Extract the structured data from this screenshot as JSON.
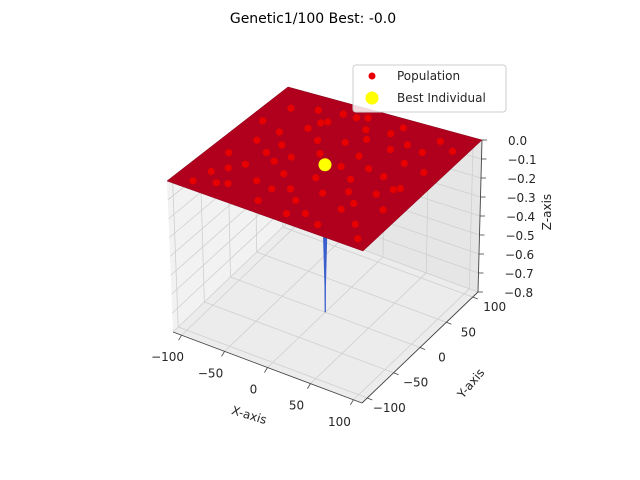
{
  "title": "Genetic1/100 Best: -0.0",
  "legend": {
    "position": "top-right",
    "items": [
      {
        "label": "Population",
        "color": "#e60000"
      },
      {
        "label": "Best Individual",
        "color": "#ffff00"
      }
    ]
  },
  "chart_data": {
    "type": "scatter",
    "projection": "3d",
    "grid": true,
    "xlabel": "X-axis",
    "ylabel": "Y-axis",
    "zlabel": "Z-axis",
    "xlim": [
      -110,
      110
    ],
    "ylim": [
      -110,
      110
    ],
    "zlim": [
      -0.8,
      0.0
    ],
    "xticks": [
      "−100",
      "−50",
      "0",
      "50",
      "100"
    ],
    "yticks": [
      "−100",
      "−50",
      "0",
      "50",
      "100"
    ],
    "zticks": [
      "0.0",
      "−0.1",
      "−0.2",
      "−0.3",
      "−0.4",
      "−0.5",
      "−0.6",
      "−0.7",
      "−0.8"
    ],
    "surface": {
      "z": 0.0,
      "color": "#b0001e",
      "spike_at": [
        0,
        0
      ],
      "spike_depth": -0.8,
      "spike_color": "#3a5fcd"
    },
    "series": [
      {
        "name": "Population",
        "color": "#e60000",
        "points": [
          [
            -85,
            -70
          ],
          [
            -60,
            -80
          ],
          [
            -40,
            -60
          ],
          [
            -20,
            -90
          ],
          [
            10,
            -70
          ],
          [
            30,
            -85
          ],
          [
            55,
            -60
          ],
          [
            80,
            -75
          ],
          [
            -90,
            -30
          ],
          [
            -65,
            -40
          ],
          [
            -45,
            -20
          ],
          [
            -25,
            -35
          ],
          [
            5,
            -25
          ],
          [
            25,
            -45
          ],
          [
            45,
            -30
          ],
          [
            70,
            -20
          ],
          [
            90,
            -40
          ],
          [
            -80,
            5
          ],
          [
            -55,
            10
          ],
          [
            -35,
            -5
          ],
          [
            -15,
            15
          ],
          [
            15,
            5
          ],
          [
            35,
            -10
          ],
          [
            60,
            10
          ],
          [
            85,
            0
          ],
          [
            -95,
            40
          ],
          [
            -70,
            30
          ],
          [
            -50,
            50
          ],
          [
            -30,
            35
          ],
          [
            -5,
            45
          ],
          [
            20,
            30
          ],
          [
            40,
            55
          ],
          [
            65,
            40
          ],
          [
            90,
            35
          ],
          [
            -85,
            75
          ],
          [
            -60,
            85
          ],
          [
            -40,
            70
          ],
          [
            -20,
            90
          ],
          [
            0,
            75
          ],
          [
            25,
            80
          ],
          [
            50,
            70
          ],
          [
            75,
            90
          ],
          [
            95,
            80
          ],
          [
            -75,
            -55
          ],
          [
            -5,
            -55
          ],
          [
            60,
            -45
          ],
          [
            -60,
            -10
          ],
          [
            10,
            60
          ],
          [
            -20,
            -65
          ],
          [
            40,
            15
          ],
          [
            -45,
            65
          ],
          [
            70,
            65
          ],
          [
            15,
            -95
          ],
          [
            -90,
            -95
          ],
          [
            95,
            -95
          ],
          [
            -10,
            95
          ],
          [
            80,
            -5
          ],
          [
            -35,
            90
          ],
          [
            30,
            95
          ],
          [
            -70,
            -85
          ],
          [
            50,
            -95
          ]
        ]
      },
      {
        "name": "Best Individual",
        "color": "#ffff00",
        "points": [
          [
            0,
            0
          ]
        ]
      }
    ]
  }
}
